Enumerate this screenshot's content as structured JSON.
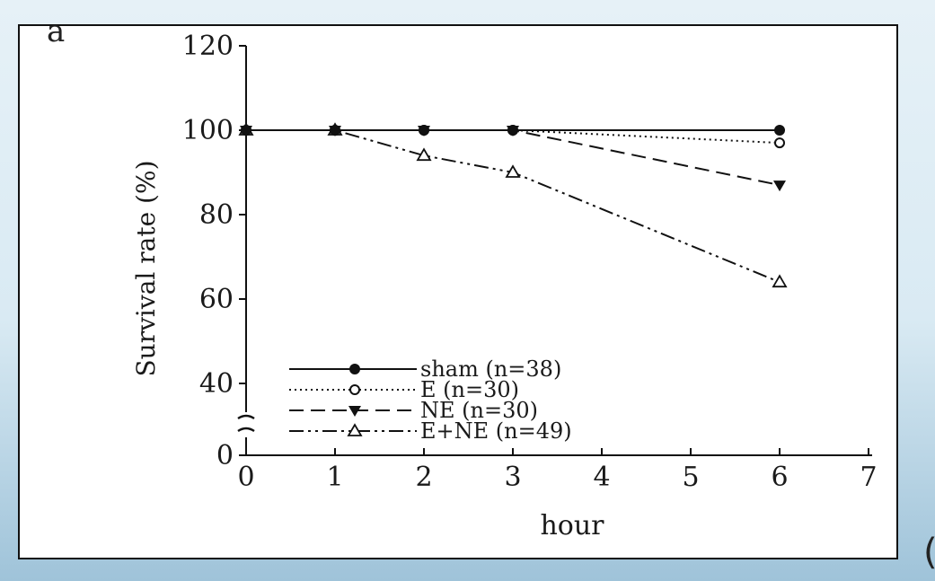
{
  "panel_letter": "a",
  "edge_glyph": "(",
  "chart_data": {
    "type": "line",
    "title": "",
    "xlabel": "hour",
    "ylabel": "Survival rate (%)",
    "xlim": [
      0,
      7
    ],
    "xticks": [
      0,
      1,
      2,
      3,
      4,
      5,
      6,
      7
    ],
    "ylim": [
      0,
      120
    ],
    "yticks": [
      0,
      40,
      60,
      80,
      100,
      120
    ],
    "y_axis_break": [
      0,
      30
    ],
    "grid": false,
    "legend_position": "lower-left",
    "series": [
      {
        "name": "sham (n=38)",
        "marker": "filled-circle",
        "line": "solid",
        "x": [
          0,
          1,
          2,
          3,
          6
        ],
        "y": [
          100,
          100,
          100,
          100,
          100
        ]
      },
      {
        "name": "E (n=30)",
        "marker": "open-circle",
        "line": "dotted",
        "x": [
          0,
          1,
          2,
          3,
          6
        ],
        "y": [
          100,
          100,
          100,
          100,
          97
        ]
      },
      {
        "name": "NE (n=30)",
        "marker": "filled-triangle-down",
        "line": "dashed",
        "x": [
          0,
          1,
          2,
          3,
          6
        ],
        "y": [
          100,
          100,
          100,
          100,
          87
        ]
      },
      {
        "name": "E+NE (n=49)",
        "marker": "open-triangle-up",
        "line": "dash-dot-dot",
        "x": [
          0,
          1,
          2,
          3,
          6
        ],
        "y": [
          100,
          100,
          94,
          90,
          64
        ]
      }
    ]
  }
}
